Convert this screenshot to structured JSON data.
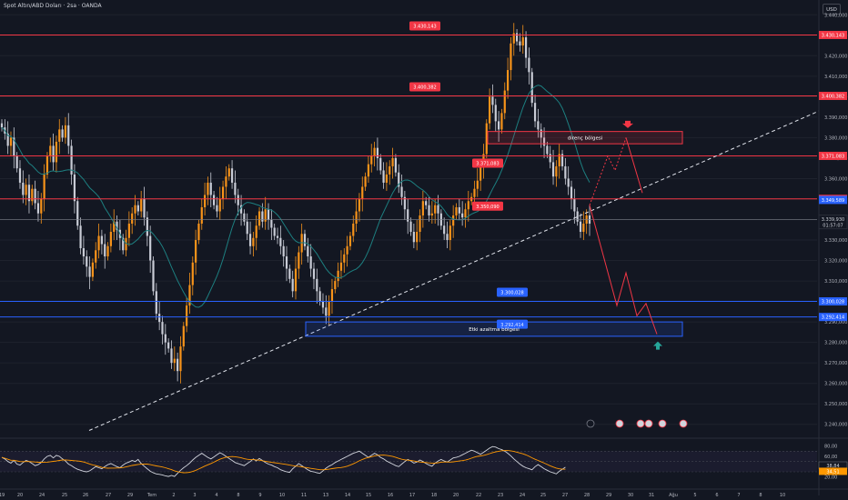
{
  "header": {
    "symbol_title": "Spot Altın/ABD Doları · 2sa · OANDA",
    "currency_button": "USD"
  },
  "colors": {
    "background": "#131722",
    "bull": "#f7931a",
    "bear": "#c9ccd6",
    "ma": "#1d7f80",
    "resistance": "#f23645",
    "support": "#2962ff",
    "trend": "#e0e3eb",
    "rsi": "#d1d4dc",
    "rsi_ma": "#ff9800",
    "projection": "#f23645"
  },
  "chart_data": {
    "type": "candlestick",
    "instrument": "Spot Altın/ABD Doları",
    "timeframe": "2sa",
    "source": "OANDA",
    "ylim": [
      3235,
      3445
    ],
    "y_ticks": [
      "3.240,000",
      "3.250,000",
      "3.260,000",
      "3.270,000",
      "3.280,000",
      "3.290,000",
      "3.300,000",
      "3.310,000",
      "3.320,000",
      "3.330,000",
      "3.340,000",
      "3.350,000",
      "3.360,000",
      "3.370,000",
      "3.380,000",
      "3.390,000",
      "3.400,000",
      "3.410,000",
      "3.420,000",
      "3.430,000",
      "3.440,000"
    ],
    "x_ticks": [
      "19",
      "20",
      "24",
      "25",
      "26",
      "27",
      "29",
      "Tem",
      "2",
      "3",
      "4",
      "8",
      "9",
      "10",
      "11",
      "13",
      "14",
      "15",
      "16",
      "17",
      "18",
      "20",
      "22",
      "23",
      "24",
      "25",
      "27",
      "28",
      "29",
      "30",
      "31",
      "Ağu",
      "5",
      "6",
      "7",
      "8",
      "10"
    ],
    "candles_close": [
      3385,
      3382,
      3376,
      3380,
      3371,
      3365,
      3358,
      3352,
      3357,
      3349,
      3355,
      3348,
      3343,
      3350,
      3362,
      3371,
      3376,
      3368,
      3378,
      3384,
      3380,
      3386,
      3376,
      3362,
      3349,
      3337,
      3326,
      3322,
      3317,
      3312,
      3319,
      3325,
      3332,
      3328,
      3322,
      3327,
      3334,
      3339,
      3335,
      3331,
      3325,
      3331,
      3338,
      3343,
      3347,
      3344,
      3350,
      3341,
      3332,
      3320,
      3305,
      3294,
      3290,
      3284,
      3280,
      3277,
      3270,
      3272,
      3266,
      3278,
      3288,
      3298,
      3308,
      3319,
      3330,
      3338,
      3346,
      3352,
      3358,
      3352,
      3347,
      3344,
      3350,
      3356,
      3361,
      3365,
      3358,
      3352,
      3347,
      3343,
      3339,
      3333,
      3327,
      3331,
      3337,
      3344,
      3339,
      3345,
      3340,
      3336,
      3332,
      3331,
      3327,
      3322,
      3316,
      3311,
      3305,
      3316,
      3324,
      3333,
      3327,
      3322,
      3316,
      3311,
      3305,
      3300,
      3297,
      3293,
      3300,
      3306,
      3310,
      3315,
      3319,
      3323,
      3327,
      3332,
      3338,
      3344,
      3350,
      3356,
      3361,
      3367,
      3371,
      3375,
      3370,
      3364,
      3358,
      3362,
      3366,
      3370,
      3363,
      3356,
      3351,
      3345,
      3339,
      3334,
      3329,
      3334,
      3342,
      3349,
      3347,
      3342,
      3343,
      3347,
      3343,
      3337,
      3333,
      3330,
      3337,
      3342,
      3346,
      3343,
      3341,
      3345,
      3349,
      3351,
      3355,
      3359,
      3366,
      3372,
      3387,
      3400,
      3396,
      3388,
      3384,
      3392,
      3403,
      3413,
      3426,
      3431,
      3427,
      3425,
      3429,
      3419,
      3412,
      3397,
      3388,
      3384,
      3380,
      3376,
      3372,
      3368,
      3361,
      3366,
      3372,
      3366,
      3360,
      3356,
      3350,
      3344,
      3339,
      3334,
      3338,
      3342,
      3338
    ],
    "levels": [
      {
        "label": "3.430,143",
        "value": 3430.143,
        "color": "resistance"
      },
      {
        "label": "3.400,382",
        "value": 3400.382,
        "color": "resistance"
      },
      {
        "label": "3.371,083",
        "value": 3371.083,
        "color": "resistance"
      },
      {
        "label": "3.350,090",
        "value": 3350.09,
        "color": "resistance"
      },
      {
        "label": "3.300,028",
        "value": 3300.028,
        "color": "support"
      },
      {
        "label": "3.292,414",
        "value": 3292.414,
        "color": "support"
      }
    ],
    "current_price": {
      "label": "3.339,930",
      "countdown": "01:57:07",
      "value": 3339.93
    },
    "ma_tag": {
      "label": "3.349,589",
      "value": 3349.589
    },
    "zones": [
      {
        "label": "direnç bölgesi",
        "top": 3383,
        "bottom": 3377,
        "color": "resistance"
      },
      {
        "label": "Etki azaltma bölgesi",
        "top": 3290,
        "bottom": 3283,
        "color": "support"
      }
    ],
    "rsi": {
      "y_ticks": [
        "80,00",
        "60,00",
        "40,00",
        "20,00"
      ],
      "value_label": "38,84",
      "ma_label": "34,51",
      "values": [
        58,
        55,
        50,
        47,
        52,
        45,
        43,
        48,
        52,
        50,
        46,
        42,
        44,
        48,
        55,
        60,
        62,
        57,
        62,
        60,
        55,
        51,
        45,
        42,
        38,
        35,
        33,
        31,
        30,
        32,
        36,
        40,
        38,
        36,
        40,
        44,
        46,
        43,
        40,
        38,
        43,
        47,
        49,
        52,
        50,
        54,
        46,
        41,
        36,
        31,
        28,
        26,
        25,
        24,
        22,
        21,
        23,
        21,
        27,
        33,
        38,
        42,
        47,
        53,
        58,
        62,
        66,
        62,
        58,
        55,
        59,
        63,
        67,
        64,
        60,
        56,
        52,
        48,
        46,
        44,
        42,
        46,
        50,
        55,
        51,
        56,
        52,
        48,
        45,
        43,
        40,
        38,
        34,
        32,
        30,
        29,
        36,
        41,
        46,
        42,
        38,
        34,
        31,
        30,
        28,
        27,
        32,
        37,
        41,
        44,
        48,
        51,
        54,
        57,
        60,
        63,
        66,
        68,
        70,
        66,
        62,
        58,
        62,
        66,
        63,
        58,
        55,
        51,
        48,
        45,
        42,
        40,
        45,
        50,
        54,
        51,
        47,
        49,
        53,
        50,
        46,
        43,
        41,
        47,
        51,
        54,
        51,
        49,
        53,
        57,
        58,
        60,
        63,
        66,
        69,
        72,
        70,
        67,
        64,
        68,
        72,
        76,
        79,
        78,
        75,
        73,
        70,
        66,
        61,
        55,
        50,
        45,
        41,
        38,
        36,
        34,
        40,
        44,
        40,
        36,
        33,
        30,
        28,
        26,
        31,
        35,
        39
      ]
    }
  }
}
